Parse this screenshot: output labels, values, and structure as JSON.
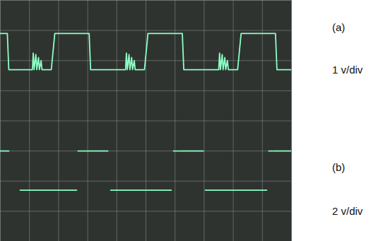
{
  "chart_data": {
    "type": "line",
    "xlim": [
      0,
      10
    ],
    "ylim": [
      0,
      8
    ],
    "xticks": [
      0,
      1,
      2,
      3,
      4,
      5,
      6,
      7,
      8,
      9,
      10
    ],
    "yticks": [
      0,
      1,
      2,
      3,
      4,
      5,
      6,
      7,
      8
    ],
    "grid": true,
    "tick_labels": false,
    "annotations": [
      "1 v/div",
      "2 v/div"
    ],
    "series": [
      {
        "name": "(a)",
        "color": "#8dffc4",
        "x": [
          0,
          0.24,
          0.29,
          1.1,
          1.13,
          1.16,
          1.22,
          1.25,
          1.31,
          1.34,
          1.4,
          1.43,
          1.75,
          1.87,
          3.05,
          3.1,
          4.3,
          4.33,
          4.36,
          4.42,
          4.45,
          4.51,
          4.54,
          4.6,
          4.63,
          4.95,
          5.07,
          6.25,
          6.3,
          7.5,
          7.53,
          7.56,
          7.62,
          7.65,
          7.71,
          7.74,
          7.8,
          7.83,
          8.15,
          8.27,
          9.45,
          9.5,
          10
        ],
        "values": [
          6.9,
          6.9,
          5.7,
          5.7,
          6.25,
          5.7,
          6.2,
          5.7,
          6.1,
          5.7,
          6.0,
          5.7,
          5.7,
          6.9,
          6.9,
          5.7,
          5.7,
          6.25,
          5.7,
          6.2,
          5.7,
          6.1,
          5.7,
          6.0,
          5.7,
          5.7,
          6.9,
          6.9,
          5.7,
          5.7,
          6.25,
          5.7,
          6.2,
          5.7,
          6.1,
          5.7,
          6.0,
          5.7,
          5.7,
          6.9,
          6.9,
          5.7,
          5.7
        ]
      },
      {
        "name": "(b)",
        "color": "#8dffc4",
        "x": [
          0,
          0.29,
          0.3,
          0.68,
          2.62,
          2.63,
          2.67,
          2.71,
          2.72,
          2.75,
          2.79,
          2.8,
          2.83,
          2.87,
          2.88,
          2.91,
          3.69,
          3.7,
          3.79,
          5.87,
          5.88,
          5.95,
          5.99,
          6.0,
          6.03,
          6.07,
          6.08,
          6.11,
          6.15,
          6.16,
          6.19,
          6.97,
          6.98,
          7.04,
          9.15,
          9.16,
          9.22,
          9.26,
          9.27,
          9.3,
          9.34,
          9.35,
          9.38,
          10
        ],
        "values": [
          3,
          3,
          null,
          1.7,
          1.7,
          null,
          3,
          3,
          null,
          3,
          3,
          null,
          3,
          3,
          null,
          3,
          3,
          null,
          1.7,
          1.7,
          null,
          3,
          3,
          null,
          3,
          3,
          null,
          3,
          3,
          null,
          3,
          3,
          null,
          1.7,
          1.7,
          null,
          3,
          3,
          null,
          3,
          3,
          null,
          3,
          3
        ]
      }
    ]
  }
}
